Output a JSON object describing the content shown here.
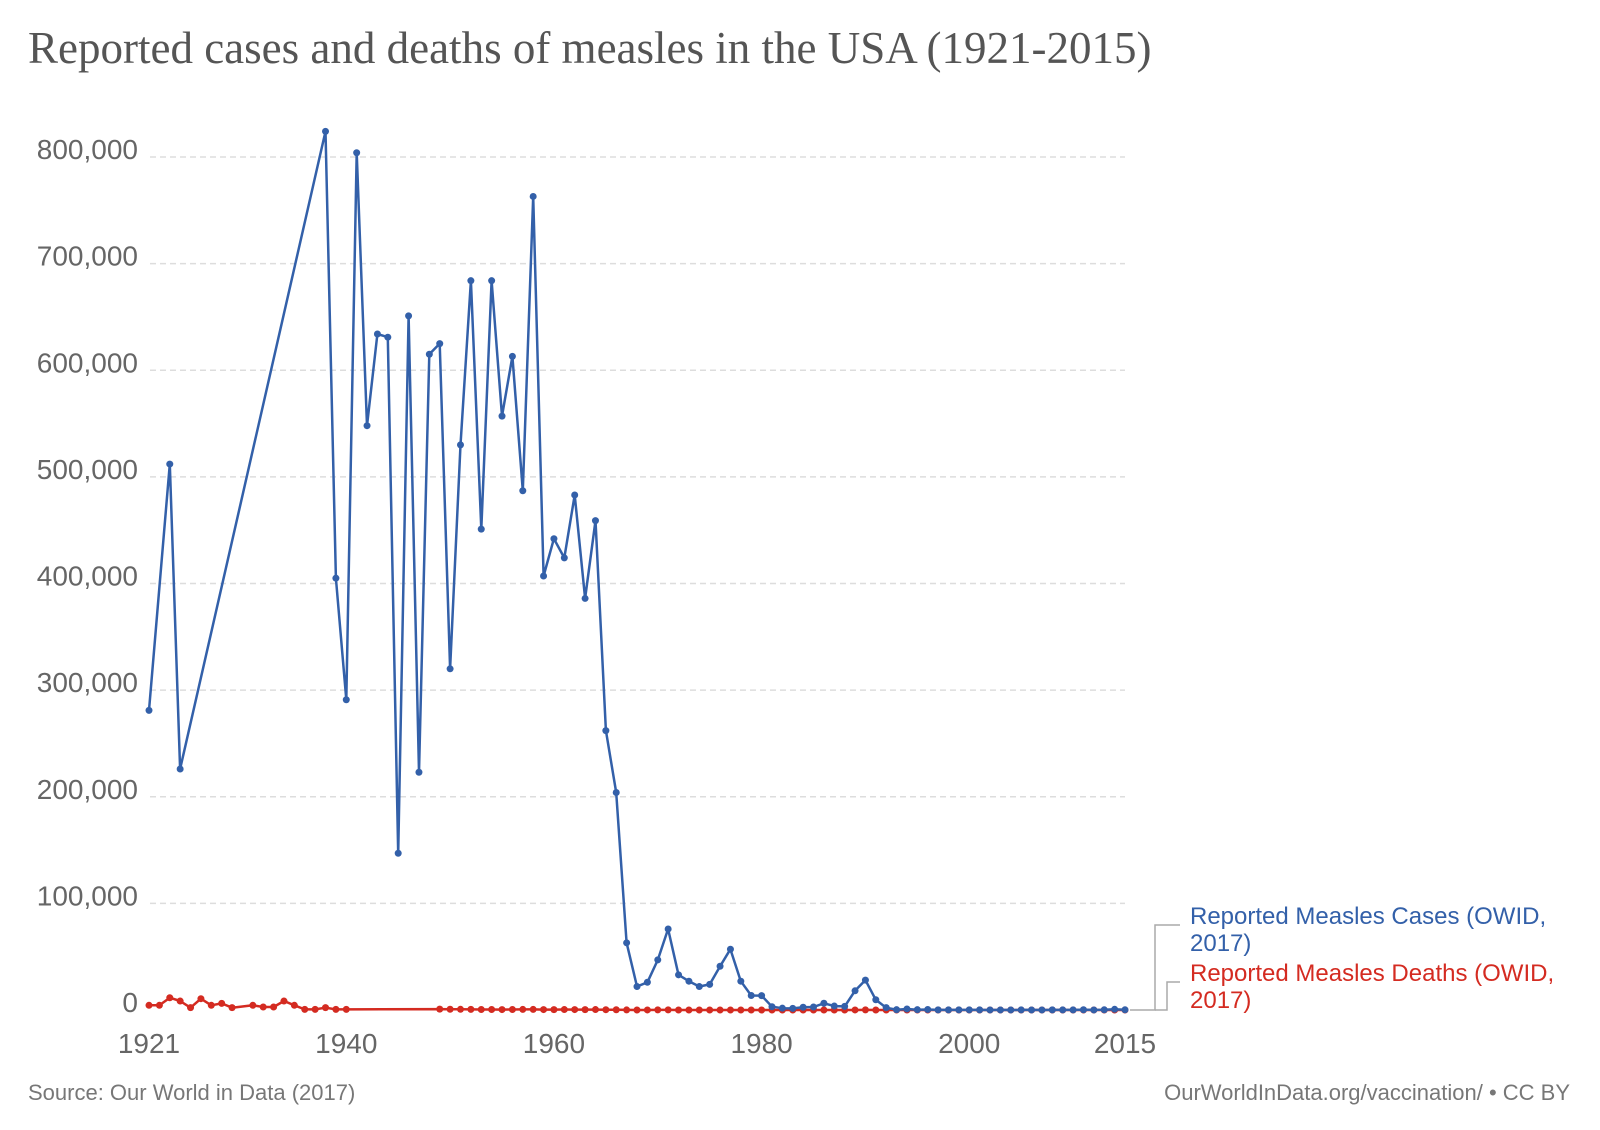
{
  "title": "Reported cases and deaths of measles in the USA (1921-2015)",
  "source": "Source: Our World in Data (2017)",
  "credit": "OurWorldInData.org/vaccination/ • CC BY",
  "chart_data": {
    "type": "line",
    "title": "Reported cases and deaths of measles in the USA (1921-2015)",
    "xlim": [
      1921,
      2015
    ],
    "ylim": [
      0,
      800000
    ],
    "x_ticks": [
      "1921",
      "1940",
      "1960",
      "1980",
      "2000",
      "2015"
    ],
    "y_ticks": [
      "0",
      "100,000",
      "200,000",
      "300,000",
      "400,000",
      "500,000",
      "600,000",
      "700,000",
      "800,000"
    ],
    "grid": true,
    "legend": "right (end-of-line labels)",
    "series": [
      {
        "name": "Reported Measles Cases (OWID, 2017)",
        "color": "#3360a9",
        "x": [
          1921,
          1923,
          1924,
          1938,
          1939,
          1940,
          1941,
          1942,
          1943,
          1944,
          1945,
          1946,
          1947,
          1948,
          1949,
          1950,
          1951,
          1952,
          1953,
          1954,
          1955,
          1956,
          1957,
          1958,
          1959,
          1960,
          1961,
          1962,
          1963,
          1964,
          1965,
          1966,
          1967,
          1968,
          1969,
          1970,
          1971,
          1972,
          1973,
          1974,
          1975,
          1976,
          1977,
          1978,
          1979,
          1980,
          1981,
          1982,
          1983,
          1984,
          1985,
          1986,
          1987,
          1988,
          1989,
          1990,
          1991,
          1992,
          1993,
          1994,
          1995,
          1996,
          1997,
          1998,
          1999,
          2000,
          2001,
          2002,
          2003,
          2004,
          2005,
          2006,
          2007,
          2008,
          2009,
          2010,
          2011,
          2012,
          2013,
          2014,
          2015
        ],
        "values": [
          281000,
          512000,
          226000,
          824000,
          405000,
          291000,
          804000,
          548000,
          634000,
          631000,
          147000,
          651000,
          223000,
          615000,
          625000,
          320000,
          530000,
          684000,
          451000,
          684000,
          557000,
          613000,
          487000,
          763000,
          407000,
          442000,
          424000,
          483000,
          386000,
          459000,
          262000,
          204000,
          63000,
          22000,
          26000,
          47000,
          76000,
          33000,
          27000,
          22000,
          24000,
          41000,
          57000,
          27000,
          13600,
          13500,
          3100,
          1700,
          1500,
          2600,
          2800,
          6300,
          3700,
          3400,
          18000,
          28000,
          9600,
          2200,
          312,
          960,
          300,
          500,
          138,
          100,
          100,
          86,
          116,
          44,
          56,
          37,
          66,
          55,
          43,
          140,
          71,
          63,
          220,
          55,
          187,
          667,
          188
        ]
      },
      {
        "name": "Reported Measles Deaths (OWID, 2017)",
        "color": "#d42b21",
        "x": [
          1921,
          1922,
          1923,
          1924,
          1925,
          1926,
          1927,
          1928,
          1929,
          1931,
          1932,
          1933,
          1934,
          1935,
          1936,
          1937,
          1938,
          1939,
          1940,
          1949,
          1950,
          1951,
          1952,
          1953,
          1954,
          1955,
          1956,
          1957,
          1958,
          1959,
          1960,
          1961,
          1962,
          1963,
          1964,
          1965,
          1966,
          1967,
          1968,
          1969,
          1970,
          1971,
          1972,
          1973,
          1974,
          1975,
          1976,
          1977,
          1978,
          1979,
          1980,
          1981,
          1982,
          1983,
          1984,
          1985,
          1986,
          1987,
          1988,
          1989,
          1990,
          1991,
          1992,
          1993,
          1994,
          1995,
          1996,
          1997,
          1998,
          1999,
          2000,
          2001,
          2002,
          2003,
          2004,
          2005,
          2006,
          2007,
          2008,
          2009,
          2010,
          2011,
          2012,
          2013,
          2014,
          2015
        ],
        "values": [
          4400,
          4400,
          11500,
          8400,
          2200,
          10600,
          4400,
          6200,
          2200,
          4400,
          2800,
          2800,
          8400,
          4400,
          600,
          600,
          2200,
          600,
          600,
          800,
          700,
          650,
          600,
          500,
          450,
          400,
          500,
          550,
          550,
          400,
          380,
          430,
          400,
          360,
          420,
          280,
          260,
          80,
          24,
          41,
          89,
          90,
          24,
          23,
          20,
          20,
          12,
          15,
          11,
          6,
          11,
          2,
          2,
          4,
          1,
          4,
          2,
          2,
          3,
          41,
          89,
          27,
          3,
          0,
          0,
          2,
          1,
          0,
          0,
          1,
          1,
          1,
          0,
          1,
          0,
          1,
          0,
          0,
          0,
          2,
          0,
          0,
          2,
          0,
          0,
          0
        ]
      }
    ]
  }
}
